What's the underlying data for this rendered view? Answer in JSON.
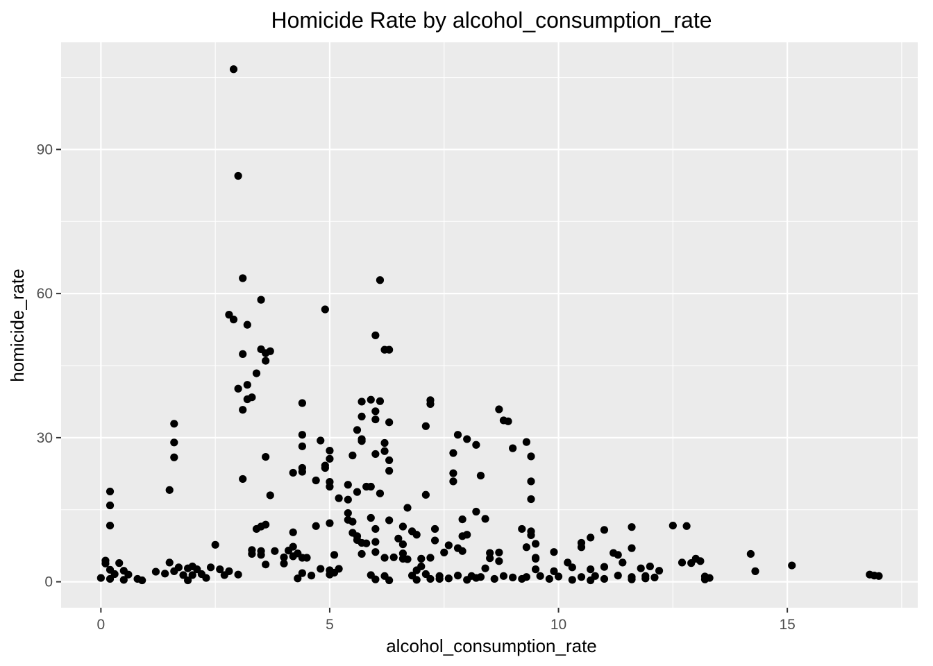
{
  "chart_data": {
    "type": "scatter",
    "title": "Homicide Rate by alcohol_consumption_rate",
    "xlabel": "alcohol_consumption_rate",
    "ylabel": "homicide_rate",
    "xlim": [
      -0.87,
      17.85
    ],
    "ylim": [
      -5.4,
      112.3
    ],
    "x_ticks": [
      0,
      5,
      10,
      15
    ],
    "x_tick_labels": [
      "0",
      "5",
      "10",
      "15"
    ],
    "y_ticks": [
      0,
      30,
      60,
      90
    ],
    "y_tick_labels": [
      "0",
      "30",
      "60",
      "90"
    ],
    "grid": true,
    "legend": "none",
    "colors": {
      "panel": "#ebebeb",
      "grid": "#ffffff",
      "point": "#000000",
      "tick": "#333333",
      "tick_label": "#4d4d4d"
    },
    "points": [
      [
        2.9,
        106.7
      ],
      [
        3.0,
        84.5
      ],
      [
        3.1,
        63.2
      ],
      [
        6.1,
        62.8
      ],
      [
        3.2,
        53.5
      ],
      [
        3.5,
        58.7
      ],
      [
        4.9,
        56.7
      ],
      [
        2.8,
        55.6
      ],
      [
        2.9,
        54.6
      ],
      [
        6.0,
        51.3
      ],
      [
        6.3,
        48.3
      ],
      [
        6.2,
        48.3
      ],
      [
        3.5,
        48.4
      ],
      [
        3.7,
        48.0
      ],
      [
        3.6,
        47.6
      ],
      [
        3.1,
        47.4
      ],
      [
        3.6,
        46.0
      ],
      [
        3.4,
        43.4
      ],
      [
        3.2,
        41.0
      ],
      [
        3.0,
        40.2
      ],
      [
        3.2,
        38.0
      ],
      [
        3.3,
        38.4
      ],
      [
        3.1,
        35.8
      ],
      [
        5.9,
        37.9
      ],
      [
        6.1,
        37.6
      ],
      [
        5.7,
        37.5
      ],
      [
        7.2,
        37.8
      ],
      [
        7.2,
        37.0
      ],
      [
        4.4,
        37.2
      ],
      [
        8.7,
        35.9
      ],
      [
        6.0,
        35.5
      ],
      [
        5.7,
        34.4
      ],
      [
        6.0,
        33.8
      ],
      [
        8.8,
        33.6
      ],
      [
        8.9,
        33.4
      ],
      [
        6.3,
        33.2
      ],
      [
        1.6,
        32.9
      ],
      [
        7.1,
        32.4
      ],
      [
        5.6,
        31.6
      ],
      [
        7.8,
        30.6
      ],
      [
        4.4,
        30.6
      ],
      [
        5.7,
        29.7
      ],
      [
        8.0,
        29.7
      ],
      [
        4.8,
        29.4
      ],
      [
        9.3,
        29.1
      ],
      [
        5.7,
        29.3
      ],
      [
        1.6,
        29.0
      ],
      [
        6.2,
        28.9
      ],
      [
        8.2,
        28.5
      ],
      [
        4.4,
        28.2
      ],
      [
        9.0,
        27.8
      ],
      [
        6.2,
        27.2
      ],
      [
        5.0,
        27.3
      ],
      [
        7.7,
        26.8
      ],
      [
        6.0,
        26.6
      ],
      [
        5.5,
        26.3
      ],
      [
        3.6,
        26.0
      ],
      [
        1.6,
        25.9
      ],
      [
        9.4,
        26.1
      ],
      [
        5.0,
        25.6
      ],
      [
        6.3,
        25.3
      ],
      [
        4.9,
        24.2
      ],
      [
        4.9,
        23.7
      ],
      [
        4.4,
        23.7
      ],
      [
        6.3,
        23.1
      ],
      [
        4.4,
        22.9
      ],
      [
        4.2,
        22.7
      ],
      [
        7.7,
        22.6
      ],
      [
        8.3,
        22.1
      ],
      [
        3.1,
        21.4
      ],
      [
        4.7,
        21.1
      ],
      [
        7.7,
        20.9
      ],
      [
        9.4,
        20.9
      ],
      [
        5.0,
        20.8
      ],
      [
        5.4,
        20.2
      ],
      [
        5.0,
        19.8
      ],
      [
        5.8,
        19.8
      ],
      [
        5.9,
        19.8
      ],
      [
        1.5,
        19.1
      ],
      [
        0.2,
        18.8
      ],
      [
        5.6,
        18.7
      ],
      [
        6.1,
        18.4
      ],
      [
        7.1,
        18.1
      ],
      [
        3.7,
        18.0
      ],
      [
        5.2,
        17.4
      ],
      [
        5.4,
        17.1
      ],
      [
        9.4,
        17.2
      ],
      [
        0.2,
        15.9
      ],
      [
        6.7,
        15.4
      ],
      [
        5.4,
        14.3
      ],
      [
        8.2,
        14.6
      ],
      [
        5.4,
        12.9
      ],
      [
        6.3,
        12.8
      ],
      [
        7.9,
        13.0
      ],
      [
        8.4,
        13.1
      ],
      [
        5.0,
        12.2
      ],
      [
        5.5,
        12.5
      ],
      [
        5.9,
        13.3
      ],
      [
        0.2,
        11.7
      ],
      [
        3.6,
        11.9
      ],
      [
        3.5,
        11.5
      ],
      [
        3.4,
        11.0
      ],
      [
        4.7,
        11.6
      ],
      [
        6.0,
        11.0
      ],
      [
        6.6,
        11.5
      ],
      [
        7.3,
        11.0
      ],
      [
        9.2,
        11.0
      ],
      [
        11.0,
        10.8
      ],
      [
        11.6,
        11.4
      ],
      [
        12.5,
        11.7
      ],
      [
        12.8,
        11.6
      ],
      [
        6.8,
        10.5
      ],
      [
        6.9,
        9.8
      ],
      [
        5.5,
        10.2
      ],
      [
        5.6,
        9.5
      ],
      [
        4.2,
        10.3
      ],
      [
        8.0,
        9.8
      ],
      [
        7.9,
        9.5
      ],
      [
        9.4,
        10.5
      ],
      [
        9.4,
        9.7
      ],
      [
        10.7,
        9.2
      ],
      [
        6.5,
        9.0
      ],
      [
        5.6,
        8.7
      ],
      [
        5.7,
        8.1
      ],
      [
        6.0,
        8.3
      ],
      [
        5.8,
        8.0
      ],
      [
        6.6,
        7.8
      ],
      [
        7.3,
        8.6
      ],
      [
        7.6,
        7.6
      ],
      [
        7.8,
        7.0
      ],
      [
        10.5,
        8.1
      ],
      [
        9.5,
        7.9
      ],
      [
        9.3,
        7.2
      ],
      [
        10.5,
        7.2
      ],
      [
        11.6,
        7.0
      ],
      [
        2.5,
        7.7
      ],
      [
        4.2,
        7.3
      ],
      [
        4.1,
        6.5
      ],
      [
        3.3,
        6.6
      ],
      [
        3.5,
        6.4
      ],
      [
        3.8,
        6.4
      ],
      [
        4.3,
        5.9
      ],
      [
        5.7,
        5.8
      ],
      [
        6.6,
        5.9
      ],
      [
        6.0,
        6.2
      ],
      [
        7.5,
        6.1
      ],
      [
        7.9,
        6.4
      ],
      [
        8.5,
        6.0
      ],
      [
        8.7,
        6.1
      ],
      [
        9.9,
        6.2
      ],
      [
        11.2,
        6.0
      ],
      [
        11.3,
        5.6
      ],
      [
        14.2,
        5.8
      ],
      [
        3.3,
        5.8
      ],
      [
        3.5,
        5.6
      ],
      [
        4.0,
        5.1
      ],
      [
        4.2,
        5.3
      ],
      [
        4.4,
        5.0
      ],
      [
        4.5,
        5.0
      ],
      [
        5.1,
        5.6
      ],
      [
        6.2,
        5.0
      ],
      [
        6.4,
        5.1
      ],
      [
        6.6,
        4.8
      ],
      [
        6.7,
        4.7
      ],
      [
        7.0,
        4.8
      ],
      [
        7.2,
        5.0
      ],
      [
        8.5,
        4.9
      ],
      [
        8.7,
        4.3
      ],
      [
        9.5,
        5.0
      ],
      [
        9.5,
        4.8
      ],
      [
        10.2,
        4.0
      ],
      [
        11.4,
        4.0
      ],
      [
        12.7,
        4.0
      ],
      [
        13.0,
        4.8
      ],
      [
        13.1,
        4.3
      ],
      [
        12.9,
        3.9
      ],
      [
        15.1,
        3.4
      ],
      [
        0.1,
        4.4
      ],
      [
        0.1,
        3.8
      ],
      [
        0.4,
        3.9
      ],
      [
        1.5,
        4.0
      ],
      [
        1.7,
        3.0
      ],
      [
        1.9,
        2.8
      ],
      [
        2.0,
        3.2
      ],
      [
        2.1,
        2.6
      ],
      [
        2.4,
        3.0
      ],
      [
        2.6,
        2.6
      ],
      [
        2.8,
        2.2
      ],
      [
        3.6,
        3.6
      ],
      [
        4.0,
        3.8
      ],
      [
        4.8,
        2.7
      ],
      [
        5.0,
        2.4
      ],
      [
        5.2,
        2.7
      ],
      [
        5.1,
        1.9
      ],
      [
        6.9,
        2.4
      ],
      [
        7.0,
        3.2
      ],
      [
        8.4,
        2.8
      ],
      [
        9.5,
        2.6
      ],
      [
        9.9,
        2.2
      ],
      [
        10.7,
        2.6
      ],
      [
        10.3,
        3.0
      ],
      [
        11.0,
        3.1
      ],
      [
        11.8,
        2.8
      ],
      [
        12.0,
        3.2
      ],
      [
        12.2,
        2.3
      ],
      [
        14.3,
        2.2
      ],
      [
        0.2,
        2.5
      ],
      [
        0.3,
        1.6
      ],
      [
        0.5,
        2.3
      ],
      [
        0.6,
        1.5
      ],
      [
        1.2,
        2.1
      ],
      [
        1.4,
        1.7
      ],
      [
        1.6,
        2.2
      ],
      [
        1.8,
        1.4
      ],
      [
        2.0,
        1.4
      ],
      [
        2.2,
        1.6
      ],
      [
        2.7,
        1.4
      ],
      [
        3.0,
        1.5
      ],
      [
        4.4,
        1.8
      ],
      [
        4.6,
        1.3
      ],
      [
        5.0,
        1.5
      ],
      [
        5.9,
        1.4
      ],
      [
        6.2,
        1.2
      ],
      [
        6.8,
        1.3
      ],
      [
        7.1,
        1.6
      ],
      [
        7.4,
        1.2
      ],
      [
        7.8,
        1.3
      ],
      [
        8.1,
        1.2
      ],
      [
        8.3,
        1.0
      ],
      [
        8.8,
        1.2
      ],
      [
        9.3,
        1.0
      ],
      [
        9.6,
        1.2
      ],
      [
        10.0,
        1.1
      ],
      [
        10.5,
        1.0
      ],
      [
        10.8,
        1.2
      ],
      [
        11.3,
        1.3
      ],
      [
        11.6,
        1.0
      ],
      [
        11.9,
        1.2
      ],
      [
        12.1,
        0.9
      ],
      [
        13.2,
        1.1
      ],
      [
        13.3,
        0.8
      ],
      [
        16.8,
        1.5
      ],
      [
        16.9,
        1.3
      ],
      [
        17.0,
        1.2
      ],
      [
        0.0,
        0.8
      ],
      [
        0.2,
        0.6
      ],
      [
        0.5,
        0.4
      ],
      [
        0.8,
        0.6
      ],
      [
        0.9,
        0.3
      ],
      [
        1.9,
        0.3
      ],
      [
        2.3,
        0.8
      ],
      [
        4.3,
        0.7
      ],
      [
        6.0,
        0.5
      ],
      [
        6.9,
        0.4
      ],
      [
        7.2,
        0.6
      ],
      [
        7.6,
        0.7
      ],
      [
        8.0,
        0.4
      ],
      [
        8.6,
        0.6
      ],
      [
        9.2,
        0.6
      ],
      [
        9.8,
        0.6
      ],
      [
        10.3,
        0.4
      ],
      [
        10.7,
        0.3
      ],
      [
        11.0,
        0.6
      ],
      [
        11.6,
        0.5
      ],
      [
        11.9,
        0.7
      ],
      [
        13.2,
        0.5
      ],
      [
        6.3,
        0.3
      ],
      [
        7.4,
        0.6
      ],
      [
        8.2,
        0.8
      ],
      [
        9.0,
        0.9
      ]
    ]
  }
}
